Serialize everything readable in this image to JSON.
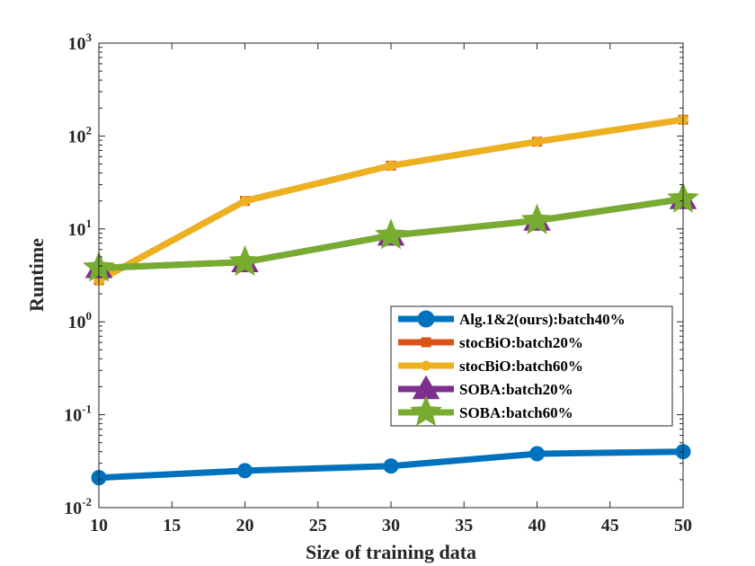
{
  "chart_data": {
    "type": "line",
    "xlabel": "Size of training data",
    "ylabel": "Runtime",
    "yscale": "log",
    "xlim": [
      10,
      50
    ],
    "ylim": [
      0.01,
      1000
    ],
    "x_ticks": [
      10,
      15,
      20,
      25,
      30,
      35,
      40,
      45,
      50
    ],
    "y_ticks": [
      {
        "value": 0.01,
        "base": "10",
        "exp": "-2"
      },
      {
        "value": 0.1,
        "base": "10",
        "exp": "-1"
      },
      {
        "value": 1,
        "base": "10",
        "exp": "0"
      },
      {
        "value": 10,
        "base": "10",
        "exp": "1"
      },
      {
        "value": 100,
        "base": "10",
        "exp": "2"
      },
      {
        "value": 1000,
        "base": "10",
        "exp": "3"
      }
    ],
    "grid": false,
    "legend_position": "inside right",
    "x": [
      10,
      20,
      30,
      40,
      50
    ],
    "series": [
      {
        "name": "Alg.1&2(ours):batch40%",
        "color": "#0072BD",
        "marker": "circle",
        "values": [
          0.021,
          0.025,
          0.028,
          0.038,
          0.04
        ]
      },
      {
        "name": "stocBiO:batch20%",
        "color": "#D95319",
        "marker": "square",
        "values": [
          2.8,
          20,
          48,
          87,
          150
        ]
      },
      {
        "name": "stocBiO:batch60%",
        "color": "#EDB120",
        "marker": "circle",
        "values": [
          2.8,
          20,
          48,
          87,
          150
        ]
      },
      {
        "name": "SOBA:batch20%",
        "color": "#7E2F8E",
        "marker": "triangle",
        "values": [
          3.8,
          4.4,
          8.5,
          12.3,
          21
        ]
      },
      {
        "name": "SOBA:batch60%",
        "color": "#77AC30",
        "marker": "star",
        "values": [
          3.8,
          4.4,
          8.5,
          12.3,
          21
        ]
      }
    ]
  }
}
